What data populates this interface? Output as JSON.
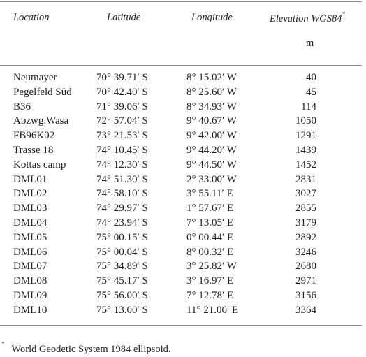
{
  "table": {
    "headers": {
      "location": "Location",
      "latitude": "Latitude",
      "longitude": "Longitude",
      "elevation": "Elevation WGS84",
      "elevation_mark": "*",
      "elevation_unit": "m"
    },
    "rows": [
      {
        "location": "Neumayer",
        "latitude": "70° 39.71′ S",
        "longitude": "8° 15.02′ W",
        "elevation": "40"
      },
      {
        "location": "Pegelfeld Süd",
        "latitude": "70° 42.40′ S",
        "longitude": "8° 25.60′ W",
        "elevation": "45"
      },
      {
        "location": "B36",
        "latitude": "71° 39.06′ S",
        "longitude": "8° 34.93′ W",
        "elevation": "114"
      },
      {
        "location": "Abzwg.Wasa",
        "latitude": "72° 57.04′ S",
        "longitude": "9° 40.67′ W",
        "elevation": "1050"
      },
      {
        "location": "FB96K02",
        "latitude": "73° 21.53′ S",
        "longitude": "9° 42.00′ W",
        "elevation": "1291"
      },
      {
        "location": "Trasse 18",
        "latitude": "74° 10.45′ S",
        "longitude": "9° 44.20′ W",
        "elevation": "1439"
      },
      {
        "location": "Kottas camp",
        "latitude": "74° 12.30′ S",
        "longitude": "9° 44.50′ W",
        "elevation": "1452"
      },
      {
        "location": "DML01",
        "latitude": "74° 51.30′ S",
        "longitude": "2° 33.00′ W",
        "elevation": "2831"
      },
      {
        "location": "DML02",
        "latitude": "74° 58.10′ S",
        "longitude": "3° 55.11′  E",
        "elevation": "3027"
      },
      {
        "location": "DML03",
        "latitude": "74° 29.97′ S",
        "longitude": "1° 57.67′  E",
        "elevation": "2855"
      },
      {
        "location": "DML04",
        "latitude": "74° 23.94′ S",
        "longitude": "7° 13.05′  E",
        "elevation": "3179"
      },
      {
        "location": "DML05",
        "latitude": "75° 00.15′ S",
        "longitude": "0° 00.44′  E",
        "elevation": "2892"
      },
      {
        "location": "DML06",
        "latitude": "75° 00.04′ S",
        "longitude": "8° 00.32′  E",
        "elevation": "3246"
      },
      {
        "location": "DML07",
        "latitude": "75° 34.89′ S",
        "longitude": "3° 25.82′ W",
        "elevation": "2680"
      },
      {
        "location": "DML08",
        "latitude": "75° 45.17′ S",
        "longitude": "3° 16.97′  E",
        "elevation": "2971"
      },
      {
        "location": "DML09",
        "latitude": "75° 56.00′ S",
        "longitude": "7° 12.78′  E",
        "elevation": "3156"
      },
      {
        "location": "DML10",
        "latitude": "75° 13.00′ S",
        "longitude": "11° 21.00′  E",
        "elevation": "3364"
      }
    ]
  },
  "footnote": {
    "mark": "*",
    "text": "World Geodetic System 1984 ellipsoid."
  }
}
